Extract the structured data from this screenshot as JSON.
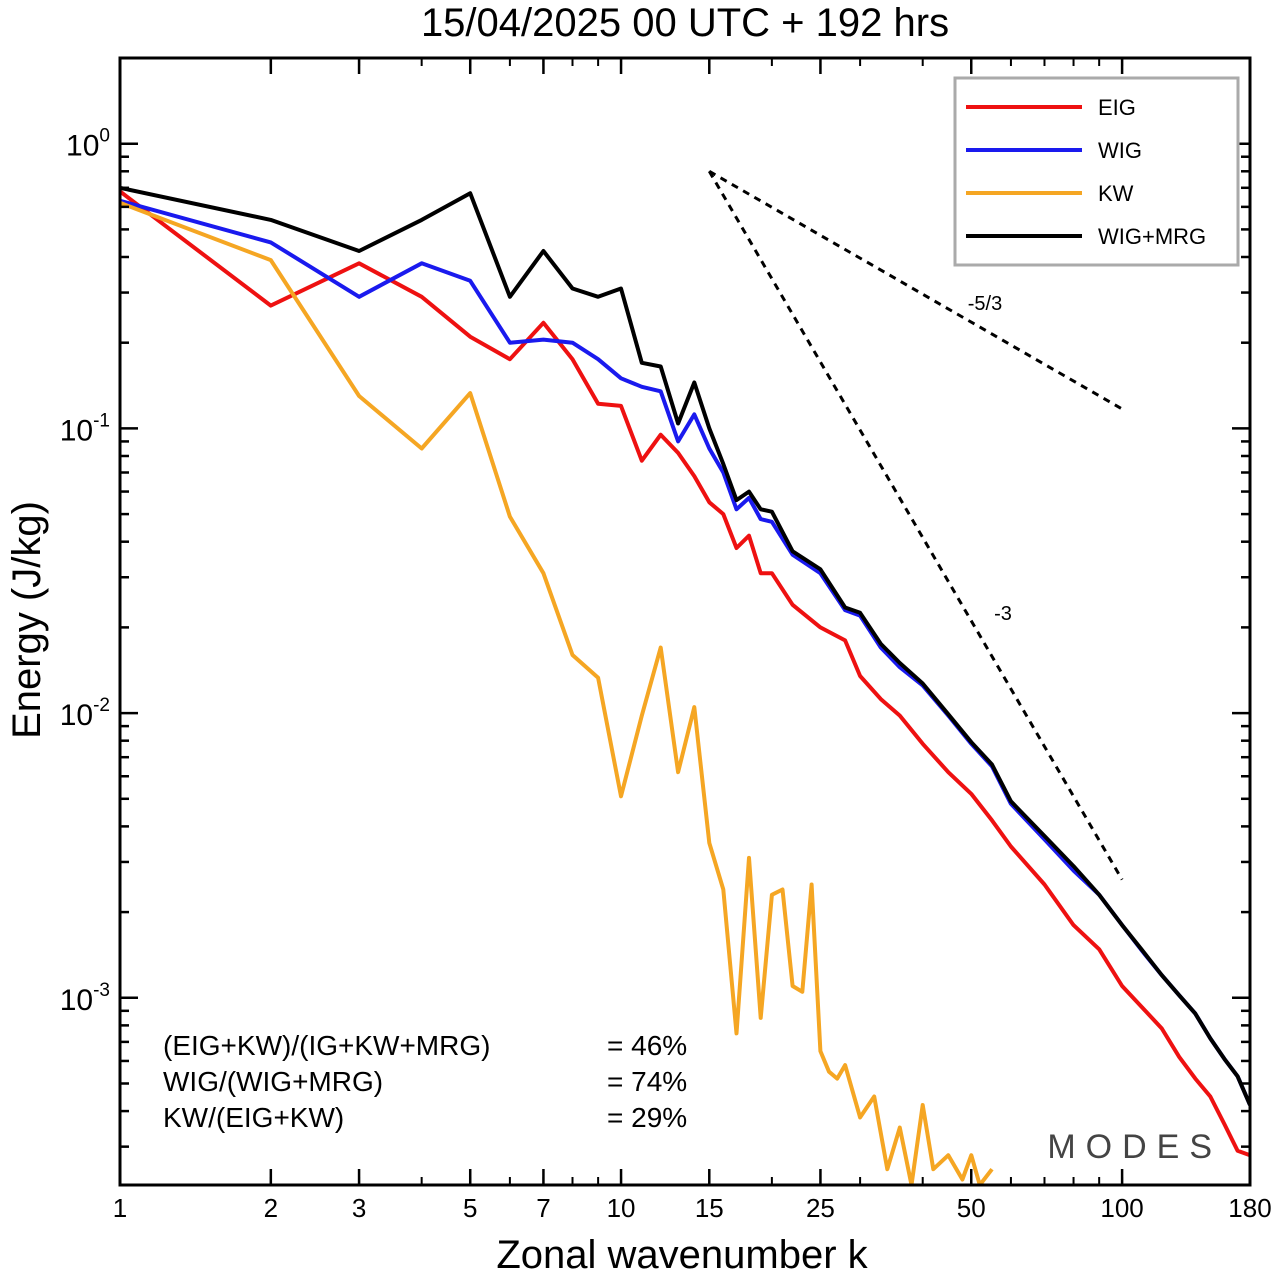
{
  "chart_data": {
    "type": "line",
    "title": "15/04/2025  00 UTC  + 192 hrs",
    "xlabel": "Zonal wavenumber k",
    "ylabel": "Energy (J/kg)",
    "xscale": "log",
    "yscale": "log",
    "xlim": [
      1,
      180
    ],
    "ylim": [
      0.00022,
      2.0
    ],
    "xticks": [
      1,
      2,
      3,
      5,
      7,
      10,
      15,
      25,
      50,
      100,
      180
    ],
    "xtick_labels": [
      "1",
      "2",
      "3",
      "5",
      "7",
      "10",
      "15",
      "25",
      "50",
      "100",
      "180"
    ],
    "yticks": [
      {
        "value": 1,
        "base": "10",
        "exp": "0"
      },
      {
        "value": 0.1,
        "base": "10",
        "exp": "-1"
      },
      {
        "value": 0.01,
        "base": "10",
        "exp": "-2"
      },
      {
        "value": 0.001,
        "base": "10",
        "exp": "-3"
      }
    ],
    "legend": {
      "placement": "top-right"
    },
    "series": [
      {
        "name": "EIG",
        "color": "#ee1111",
        "x": [
          1,
          2,
          3,
          4,
          5,
          6,
          7,
          8,
          9,
          10,
          11,
          12,
          13,
          14,
          15,
          16,
          17,
          18,
          19,
          20,
          22,
          25,
          28,
          30,
          33,
          36,
          40,
          45,
          50,
          55,
          60,
          70,
          80,
          90,
          100,
          110,
          120,
          130,
          140,
          150,
          160,
          170,
          180
        ],
        "y": [
          0.68,
          0.27,
          0.38,
          0.29,
          0.21,
          0.175,
          0.235,
          0.175,
          0.122,
          0.12,
          0.077,
          0.095,
          0.082,
          0.068,
          0.055,
          0.05,
          0.038,
          0.042,
          0.031,
          0.031,
          0.024,
          0.02,
          0.018,
          0.0135,
          0.0112,
          0.0098,
          0.0078,
          0.0062,
          0.0052,
          0.0042,
          0.0034,
          0.0025,
          0.0018,
          0.00148,
          0.0011,
          0.00092,
          0.00078,
          0.00062,
          0.00052,
          0.00045,
          0.00036,
          0.00029,
          0.00028
        ]
      },
      {
        "name": "WIG",
        "color": "#1a1aee",
        "x": [
          1,
          2,
          3,
          4,
          5,
          6,
          7,
          8,
          9,
          10,
          11,
          12,
          13,
          14,
          15,
          16,
          17,
          18,
          19,
          20,
          22,
          25,
          28,
          30,
          33,
          36,
          40,
          45,
          50,
          55,
          60,
          70,
          80,
          90,
          100,
          110,
          120,
          130,
          140,
          150,
          160,
          170,
          180
        ],
        "y": [
          0.63,
          0.45,
          0.29,
          0.38,
          0.33,
          0.2,
          0.205,
          0.2,
          0.175,
          0.15,
          0.14,
          0.135,
          0.09,
          0.112,
          0.085,
          0.07,
          0.052,
          0.057,
          0.048,
          0.047,
          0.036,
          0.031,
          0.023,
          0.022,
          0.017,
          0.0145,
          0.0125,
          0.0098,
          0.0078,
          0.0065,
          0.0048,
          0.0036,
          0.0028,
          0.0023,
          0.0018,
          0.00145,
          0.0012,
          0.00102,
          0.00088,
          0.00072,
          0.00061,
          0.00053,
          0.00042
        ]
      },
      {
        "name": "KW",
        "color": "#f5a623",
        "x": [
          1,
          2,
          3,
          4,
          5,
          6,
          7,
          8,
          9,
          10,
          11,
          12,
          13,
          14,
          15,
          16,
          17,
          18,
          19,
          20,
          21,
          22,
          23,
          24,
          25,
          26,
          27,
          28,
          30,
          32,
          34,
          36,
          38,
          40,
          42,
          45,
          48,
          50,
          52,
          55
        ],
        "y": [
          0.62,
          0.39,
          0.13,
          0.085,
          0.133,
          0.049,
          0.031,
          0.016,
          0.0133,
          0.0051,
          0.0098,
          0.017,
          0.0062,
          0.0105,
          0.0035,
          0.0024,
          0.00075,
          0.0031,
          0.00085,
          0.0023,
          0.0024,
          0.0011,
          0.00105,
          0.0025,
          0.00065,
          0.00055,
          0.00052,
          0.00058,
          0.00038,
          0.00045,
          0.00025,
          0.00035,
          0.00022,
          0.00042,
          0.00025,
          0.00028,
          0.00023,
          0.00028,
          0.00022,
          0.00025
        ]
      },
      {
        "name": "WIG+MRG",
        "color": "#000000",
        "x": [
          1,
          2,
          3,
          4,
          5,
          6,
          7,
          8,
          9,
          10,
          11,
          12,
          13,
          14,
          15,
          16,
          17,
          18,
          19,
          20,
          22,
          25,
          28,
          30,
          33,
          36,
          40,
          45,
          50,
          55,
          60,
          70,
          80,
          90,
          100,
          110,
          120,
          130,
          140,
          150,
          160,
          170,
          180
        ],
        "y": [
          0.7,
          0.54,
          0.42,
          0.54,
          0.67,
          0.29,
          0.42,
          0.31,
          0.29,
          0.31,
          0.17,
          0.165,
          0.104,
          0.145,
          0.1,
          0.075,
          0.056,
          0.06,
          0.052,
          0.051,
          0.037,
          0.032,
          0.0235,
          0.0225,
          0.0175,
          0.015,
          0.0127,
          0.0099,
          0.0079,
          0.0066,
          0.0049,
          0.0037,
          0.0029,
          0.0023,
          0.0018,
          0.00146,
          0.0012,
          0.00102,
          0.00088,
          0.00072,
          0.00061,
          0.00053,
          0.00042
        ]
      }
    ],
    "reference_lines": [
      {
        "label": "-5/3",
        "x": [
          15,
          100
        ],
        "y": [
          0.8,
          0.117
        ]
      },
      {
        "label": "-3",
        "x": [
          15,
          100
        ],
        "y": [
          0.8,
          0.0026
        ]
      }
    ],
    "annotations": [
      {
        "text": "(EIG+KW)/(IG+KW+MRG)",
        "value": "= 46%"
      },
      {
        "text": "WIG/(WIG+MRG)",
        "value": "= 74%"
      },
      {
        "text": "KW/(EIG+KW)",
        "value": "= 29%"
      }
    ],
    "watermark": "MODES"
  }
}
